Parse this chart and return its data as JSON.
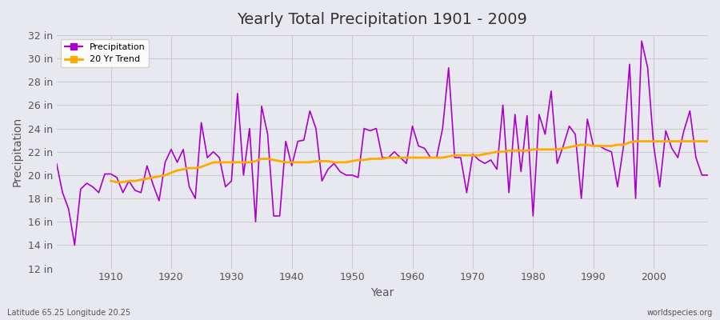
{
  "title": "Yearly Total Precipitation 1901 - 2009",
  "xlabel": "Year",
  "ylabel": "Precipitation",
  "footnote_left": "Latitude 65.25 Longitude 20.25",
  "footnote_right": "worldspecies.org",
  "bg_color": "#e8e8f0",
  "plot_bg_color": "#e8e8f0",
  "precip_color": "#aa00cc",
  "trend_color": "#ffaa00",
  "ylim": [
    12,
    32
  ],
  "yticks": [
    12,
    14,
    16,
    18,
    20,
    22,
    24,
    26,
    28,
    30,
    32
  ],
  "ytick_labels": [
    "12 in",
    "14 in",
    "16 in",
    "18 in",
    "20 in",
    "22 in",
    "24 in",
    "26 in",
    "28 in",
    "30 in",
    "32 in"
  ],
  "xlim": [
    1901,
    2009
  ],
  "xticks": [
    1910,
    1920,
    1930,
    1940,
    1950,
    1960,
    1970,
    1980,
    1990,
    2000
  ],
  "years": [
    1901,
    1902,
    1903,
    1904,
    1905,
    1906,
    1907,
    1908,
    1909,
    1910,
    1911,
    1912,
    1913,
    1914,
    1915,
    1916,
    1917,
    1918,
    1919,
    1920,
    1921,
    1922,
    1923,
    1924,
    1925,
    1926,
    1927,
    1928,
    1929,
    1930,
    1931,
    1932,
    1933,
    1934,
    1935,
    1936,
    1937,
    1938,
    1939,
    1940,
    1941,
    1942,
    1943,
    1944,
    1945,
    1946,
    1947,
    1948,
    1949,
    1950,
    1951,
    1952,
    1953,
    1954,
    1955,
    1956,
    1957,
    1958,
    1959,
    1960,
    1961,
    1962,
    1963,
    1964,
    1965,
    1966,
    1967,
    1968,
    1969,
    1970,
    1971,
    1972,
    1973,
    1974,
    1975,
    1976,
    1977,
    1978,
    1979,
    1980,
    1981,
    1982,
    1983,
    1984,
    1985,
    1986,
    1987,
    1988,
    1989,
    1990,
    1991,
    1992,
    1993,
    1994,
    1995,
    1996,
    1997,
    1998,
    1999,
    2000,
    2001,
    2002,
    2003,
    2004,
    2005,
    2006,
    2007,
    2008,
    2009
  ],
  "precip": [
    21.0,
    18.5,
    17.1,
    14.0,
    18.8,
    19.3,
    19.0,
    18.5,
    20.1,
    20.1,
    19.8,
    18.5,
    19.5,
    18.7,
    18.5,
    20.8,
    19.2,
    17.8,
    21.1,
    22.2,
    21.1,
    22.2,
    19.0,
    18.0,
    24.5,
    21.5,
    22.0,
    21.5,
    19.0,
    19.5,
    27.0,
    20.0,
    24.0,
    16.0,
    25.9,
    23.5,
    16.5,
    16.5,
    22.9,
    20.8,
    22.9,
    23.0,
    25.5,
    24.0,
    19.5,
    20.5,
    21.0,
    20.3,
    20.0,
    20.0,
    19.8,
    24.0,
    23.8,
    24.0,
    21.5,
    21.5,
    22.0,
    21.5,
    21.0,
    24.2,
    22.5,
    22.3,
    21.5,
    21.5,
    24.0,
    29.2,
    21.5,
    21.5,
    18.5,
    21.8,
    21.3,
    21.0,
    21.3,
    20.5,
    26.0,
    18.5,
    25.2,
    20.3,
    25.1,
    16.5,
    25.2,
    23.5,
    27.2,
    21.0,
    22.5,
    24.2,
    23.5,
    18.0,
    24.8,
    22.5,
    22.5,
    22.2,
    22.0,
    19.0,
    22.5,
    29.5,
    18.0,
    31.5,
    29.2,
    22.5,
    19.0,
    23.8,
    22.3,
    21.5,
    23.8,
    25.5,
    21.5,
    20.0,
    20.0
  ],
  "trend_years": [
    1910,
    1911,
    1912,
    1913,
    1914,
    1915,
    1916,
    1917,
    1918,
    1919,
    1920,
    1921,
    1922,
    1923,
    1924,
    1925,
    1926,
    1927,
    1928,
    1929,
    1930,
    1931,
    1932,
    1933,
    1934,
    1935,
    1936,
    1937,
    1938,
    1939,
    1940,
    1941,
    1942,
    1943,
    1944,
    1945,
    1946,
    1947,
    1948,
    1949,
    1950,
    1951,
    1952,
    1953,
    1954,
    1955,
    1956,
    1957,
    1958,
    1959,
    1960,
    1961,
    1962,
    1963,
    1964,
    1965,
    1966,
    1967,
    1968,
    1969,
    1970,
    1971,
    1972,
    1973,
    1974,
    1975,
    1976,
    1977,
    1978,
    1979,
    1980,
    1981,
    1982,
    1983,
    1984,
    1985,
    1986,
    1987,
    1988,
    1989,
    1990,
    1991,
    1992,
    1993,
    1994,
    1995,
    1996,
    1997,
    1998,
    1999,
    2000,
    2001,
    2002,
    2003,
    2004,
    2005,
    2006,
    2007,
    2008,
    2009
  ],
  "trend": [
    19.5,
    19.4,
    19.4,
    19.5,
    19.5,
    19.6,
    19.7,
    19.8,
    19.9,
    20.0,
    20.2,
    20.4,
    20.5,
    20.6,
    20.6,
    20.7,
    20.9,
    21.1,
    21.1,
    21.1,
    21.1,
    21.1,
    21.1,
    21.1,
    21.2,
    21.4,
    21.4,
    21.3,
    21.2,
    21.1,
    21.1,
    21.1,
    21.1,
    21.1,
    21.2,
    21.2,
    21.2,
    21.1,
    21.1,
    21.1,
    21.2,
    21.3,
    21.3,
    21.4,
    21.4,
    21.4,
    21.5,
    21.5,
    21.5,
    21.5,
    21.5,
    21.5,
    21.5,
    21.5,
    21.5,
    21.5,
    21.6,
    21.7,
    21.7,
    21.7,
    21.7,
    21.7,
    21.8,
    21.9,
    22.0,
    22.0,
    22.1,
    22.1,
    22.1,
    22.1,
    22.2,
    22.2,
    22.2,
    22.2,
    22.2,
    22.3,
    22.4,
    22.5,
    22.6,
    22.6,
    22.5,
    22.5,
    22.5,
    22.5,
    22.6,
    22.6,
    22.8,
    22.9,
    22.9,
    22.9,
    22.9,
    22.9,
    22.9,
    22.9,
    22.9,
    22.9,
    22.9,
    22.9,
    22.9,
    22.9
  ]
}
